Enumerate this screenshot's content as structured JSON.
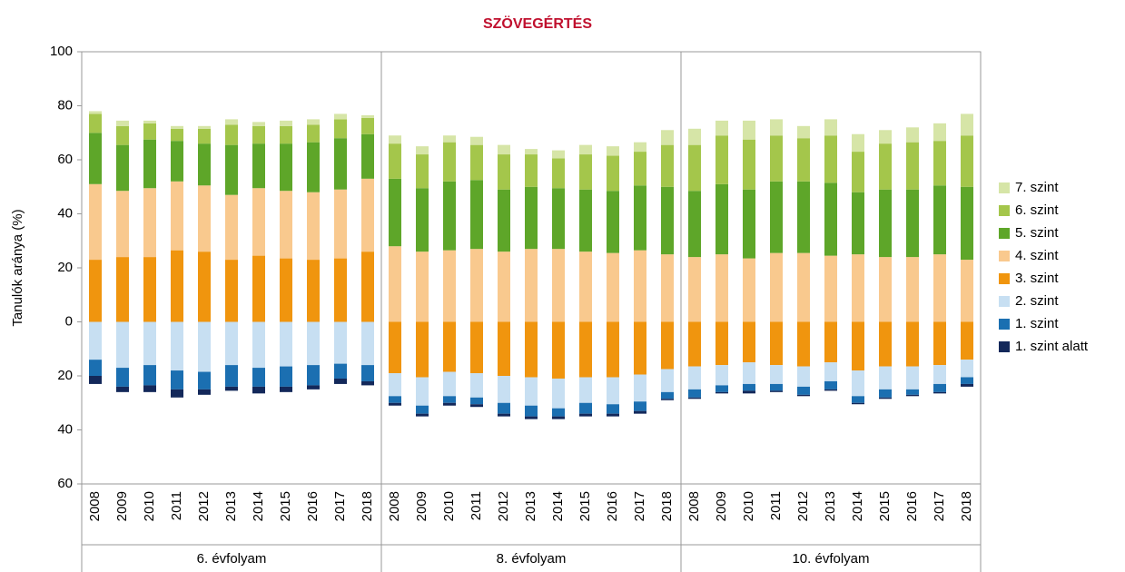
{
  "chart_data": {
    "type": "bar",
    "stacked": "diverging",
    "title": "SZÖVEGÉRTÉS",
    "title_color": "#c0102e",
    "y_label": "Tanulók aránya (%)",
    "groups": [
      "6. évfolyam",
      "8. évfolyam",
      "10. évfolyam"
    ],
    "categories": [
      "2008",
      "2009",
      "2010",
      "2011",
      "2012",
      "2013",
      "2014",
      "2015",
      "2016",
      "2017",
      "2018",
      "2008",
      "2009",
      "2010",
      "2011",
      "2012",
      "2013",
      "2014",
      "2015",
      "2016",
      "2017",
      "2018",
      "2008",
      "2009",
      "2010",
      "2011",
      "2012",
      "2013",
      "2014",
      "2015",
      "2016",
      "2017",
      "2018"
    ],
    "ylim": [
      -60,
      100
    ],
    "yticks": [
      {
        "value": -60,
        "label": "60"
      },
      {
        "value": -40,
        "label": "40"
      },
      {
        "value": -20,
        "label": "20"
      },
      0,
      20,
      40,
      60,
      80,
      100
    ],
    "grid": false,
    "legend": "right",
    "series": [
      {
        "name": "1. szint alatt",
        "color": "#13285a",
        "values": [
          -3,
          -2,
          -2.5,
          -3,
          -2,
          -1.5,
          -2.5,
          -2,
          -1.5,
          -2,
          -1.5,
          -1,
          -1,
          -1,
          -1,
          -1,
          -1,
          -1,
          -1,
          -1,
          -1,
          -0.5,
          -0.5,
          -0.5,
          -1,
          -0.5,
          -0.5,
          -0.5,
          -0.5,
          -0.5,
          -0.5,
          -0.5,
          -1
        ]
      },
      {
        "name": "1. szint",
        "color": "#1b6fb1",
        "values": [
          -6,
          -7,
          -7.5,
          -7,
          -6.5,
          -8,
          -7,
          -7.5,
          -7.5,
          -5.5,
          -6,
          -2.5,
          -3,
          -2.5,
          -2.5,
          -4,
          -4,
          -3,
          -4,
          -3.5,
          -3.5,
          -2.5,
          -3,
          -2.5,
          -2.5,
          -2.5,
          -3,
          -3,
          -2.5,
          -3,
          -2,
          -3,
          -2.5
        ]
      },
      {
        "name": "2. szint",
        "color": "#c7dff2",
        "values": [
          -14,
          -17,
          -16,
          -18,
          -18.5,
          -16,
          -17,
          -16.5,
          -16,
          -15.5,
          -16,
          -8.5,
          -10.5,
          -9,
          -9,
          -10,
          -10.5,
          -11,
          -9.5,
          -10,
          -10,
          -8.5,
          -8.5,
          -7.5,
          -8,
          -7,
          -7.5,
          -7,
          -9.5,
          -8.5,
          -8.5,
          -7,
          -6.5
        ]
      },
      {
        "name": "3. szint",
        "color": "#f0950e",
        "values": [
          23,
          24,
          24,
          26.5,
          26,
          23,
          24.5,
          23.5,
          23,
          23.5,
          26,
          -19,
          -20.5,
          -18.5,
          -19,
          -20,
          -20.5,
          -21,
          -20.5,
          -20.5,
          -19.5,
          -17.5,
          -16.5,
          -16,
          -15,
          -16,
          -16.5,
          -15,
          -18,
          -16.5,
          -16.5,
          -16,
          -14
        ]
      },
      {
        "name": "4. szint",
        "color": "#f9c98e",
        "values": [
          28,
          24.5,
          25.5,
          25.5,
          24.5,
          24,
          25,
          25,
          25,
          25.5,
          27,
          28,
          26,
          26.5,
          27,
          26,
          27,
          27,
          26,
          25.5,
          26.5,
          25,
          24,
          25,
          23.5,
          25.5,
          25.5,
          24.5,
          25,
          24,
          24,
          25,
          23
        ]
      },
      {
        "name": "5. szint",
        "color": "#5ea629",
        "values": [
          19,
          17,
          18,
          15,
          15.5,
          18.5,
          16.5,
          17.5,
          18.5,
          19,
          16.5,
          25,
          23.5,
          25.5,
          25.5,
          23,
          23,
          22.5,
          23,
          23,
          24,
          25,
          24.5,
          26,
          25.5,
          26.5,
          26.5,
          27,
          23,
          25,
          25,
          25.5,
          27
        ]
      },
      {
        "name": "6. szint",
        "color": "#a4c64b",
        "values": [
          7,
          7,
          6,
          4.5,
          5.5,
          7.5,
          6.5,
          6.5,
          6.5,
          7,
          6,
          13,
          12.5,
          14.5,
          13,
          13,
          12,
          11,
          13,
          13,
          12.5,
          15.5,
          17,
          18,
          18.5,
          17,
          16,
          17.5,
          15,
          17,
          17.5,
          16.5,
          19
        ]
      },
      {
        "name": "7. szint",
        "color": "#d6e5a7",
        "values": [
          1,
          2,
          1,
          1,
          1,
          2,
          1.5,
          2,
          2,
          2,
          1,
          3,
          3,
          2.5,
          3,
          3.5,
          2,
          3,
          3.5,
          3.5,
          3.5,
          5.5,
          6,
          5.5,
          7,
          6,
          4.5,
          6,
          6.5,
          5,
          5.5,
          6.5,
          8
        ]
      }
    ]
  }
}
